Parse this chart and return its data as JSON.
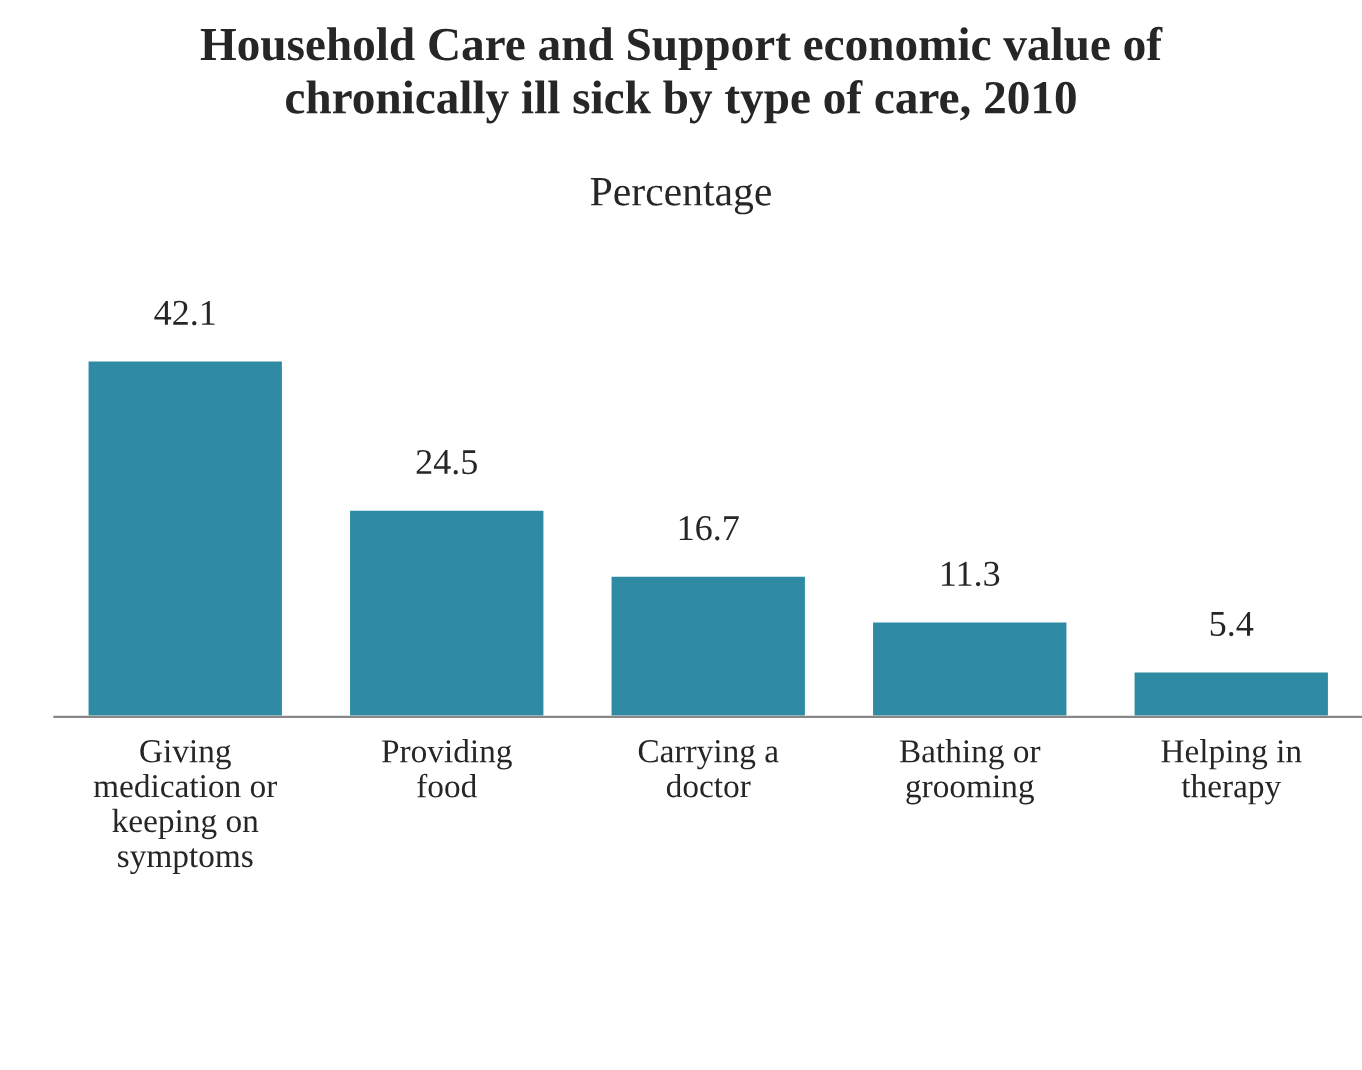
{
  "chart_data": {
    "type": "bar",
    "title": "Household Care and Support economic value of\nchronically ill sick by type of care, 2010",
    "subtitle": "Percentage",
    "categories": [
      "Giving\nmedication or\nkeeping on\nsymptoms",
      "Providing\nfood",
      "Carrying a\ndoctor",
      "Bathing or\ngrooming",
      "Helping in\ntherapy"
    ],
    "values": [
      42.1,
      24.5,
      16.7,
      11.3,
      5.4
    ],
    "color": "#2e8ba3",
    "data_labels": true,
    "grid": false,
    "legend": false
  }
}
